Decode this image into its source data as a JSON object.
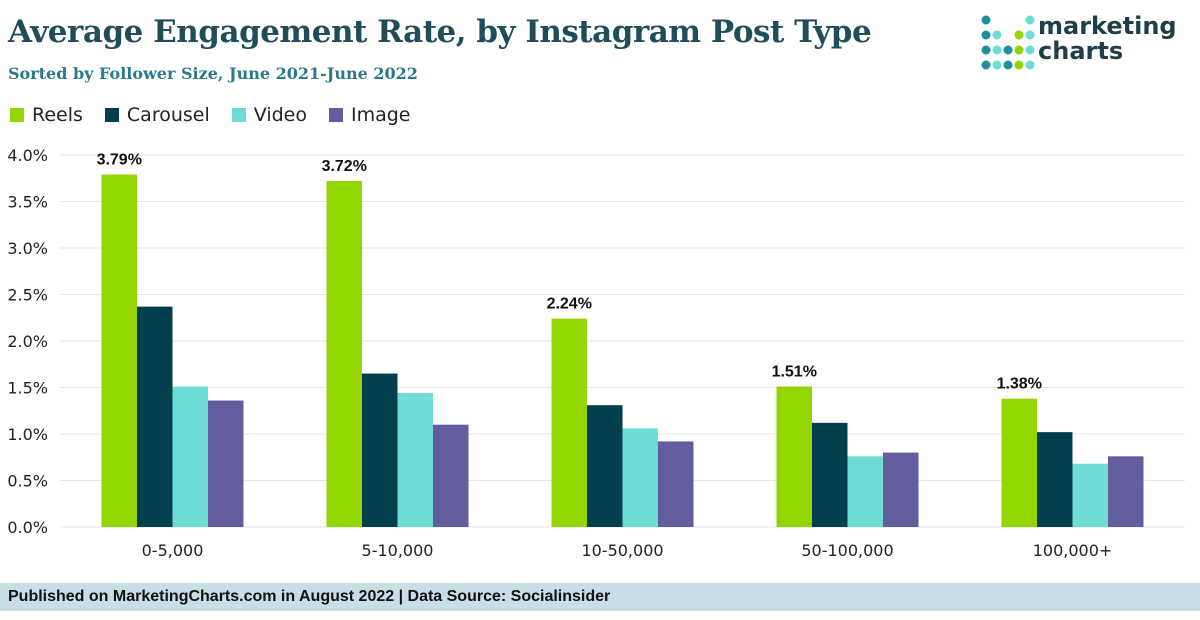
{
  "chart_data": {
    "type": "bar",
    "title": "Average Engagement Rate, by Instagram Post Type",
    "subtitle": "Sorted by Follower Size, June 2021-June 2022",
    "categories": [
      "0-5,000",
      "5-10,000",
      "10-50,000",
      "50-100,000",
      "100,000+"
    ],
    "series": [
      {
        "name": "Reels",
        "color": "#93d500",
        "values": [
          3.79,
          3.72,
          2.24,
          1.51,
          1.38
        ],
        "labels": [
          "3.79%",
          "3.72%",
          "2.24%",
          "1.51%",
          "1.38%"
        ]
      },
      {
        "name": "Carousel",
        "color": "#043f50",
        "values": [
          2.37,
          1.65,
          1.31,
          1.12,
          1.02
        ]
      },
      {
        "name": "Video",
        "color": "#6cdcd4",
        "values": [
          1.51,
          1.44,
          1.06,
          0.76,
          0.68
        ]
      },
      {
        "name": "Image",
        "color": "#625d9e",
        "values": [
          1.36,
          1.1,
          0.92,
          0.8,
          0.76
        ]
      }
    ],
    "yticks": [
      "0.0%",
      "0.5%",
      "1.0%",
      "1.5%",
      "2.0%",
      "2.5%",
      "3.0%",
      "3.5%",
      "4.0%"
    ],
    "ylim": [
      0,
      4
    ],
    "grid": true,
    "legend": "top-left",
    "xlabel": "",
    "ylabel": ""
  },
  "logo": {
    "line1": "marketing",
    "line2": "charts"
  },
  "footer": "Published on MarketingCharts.com in August 2022 | Data Source: Socialinsider"
}
